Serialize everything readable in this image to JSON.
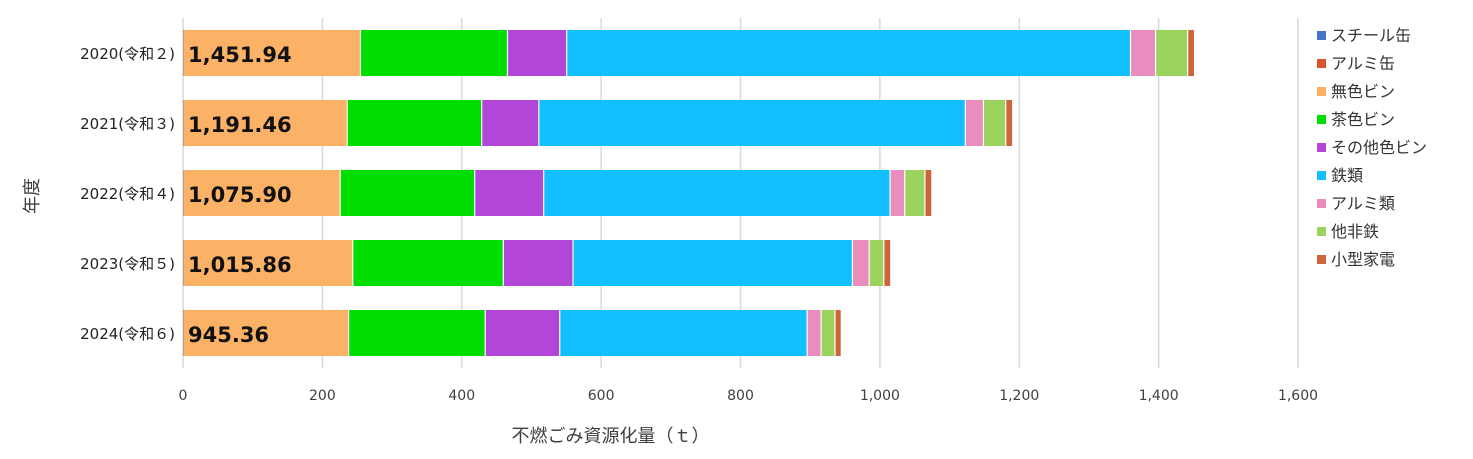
{
  "chart_data": {
    "type": "bar",
    "orientation": "horizontal",
    "stacked": true,
    "title": "",
    "xlabel": "不燃ごみ資源化量（ｔ）",
    "ylabel": "年度",
    "xlim": [
      0,
      1600
    ],
    "xticks": [
      0,
      200,
      400,
      600,
      800,
      1000,
      1200,
      1400,
      1600
    ],
    "xtick_labels": [
      "0",
      "200",
      "400",
      "600",
      "800",
      "1,000",
      "1,200",
      "1,400",
      "1,600"
    ],
    "grid": true,
    "legend_position": "right",
    "categories": [
      "2020(令和２)",
      "2021(令和３)",
      "2022(令和４)",
      "2023(令和５)",
      "2024(令和６)"
    ],
    "totals_labels": [
      "1,451.94",
      "1,191.46",
      "1,075.90",
      "1,015.86",
      "945.36"
    ],
    "series": [
      {
        "name": "スチール缶",
        "color": "#4472C4",
        "values": [
          0.5,
          0.5,
          0.5,
          0.5,
          0.5
        ]
      },
      {
        "name": "アルミ缶",
        "color": "#D9542B",
        "values": [
          0,
          0,
          0,
          0,
          0
        ]
      },
      {
        "name": "無色ビン",
        "color": "#FBB266",
        "values": [
          255,
          236,
          226,
          244,
          238
        ]
      },
      {
        "name": "茶色ビン",
        "color": "#00DD00",
        "values": [
          211,
          193,
          193,
          216,
          196
        ]
      },
      {
        "name": "その他色ビン",
        "color": "#B146D8",
        "values": [
          85,
          82,
          99,
          100,
          107
        ]
      },
      {
        "name": "鉄類",
        "color": "#12BFFF",
        "values": [
          809,
          612,
          497,
          401,
          355
        ]
      },
      {
        "name": "アルミ類",
        "color": "#E88DBD",
        "values": [
          36,
          26,
          21,
          24,
          20
        ]
      },
      {
        "name": "他非鉄",
        "color": "#9BD35F",
        "values": [
          46,
          32,
          29,
          21,
          20
        ]
      },
      {
        "name": "小型家電",
        "color": "#CD643C",
        "values": [
          10,
          10,
          10,
          10,
          9
        ]
      }
    ]
  }
}
